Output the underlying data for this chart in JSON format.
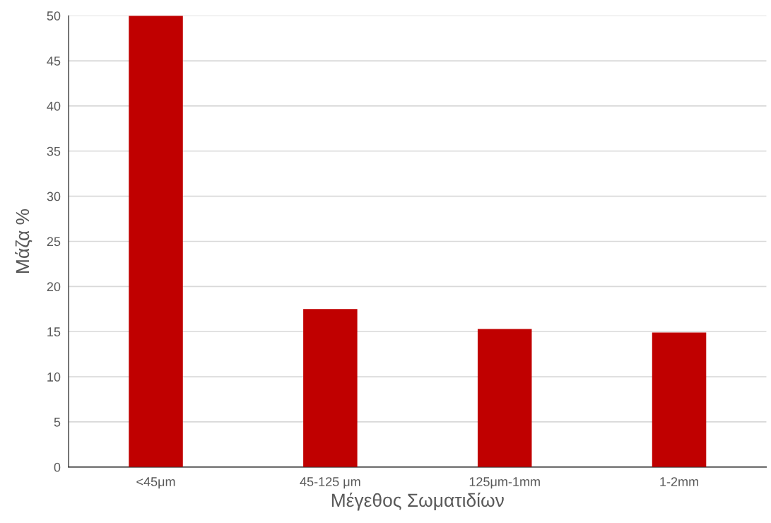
{
  "chart_data": {
    "type": "bar",
    "xlabel": "Μέγεθος Σωματιδίων",
    "ylabel": "Μάζα %",
    "categories": [
      "<45μm",
      "45-125 μm",
      "125μm-1mm",
      "1-2mm"
    ],
    "values": [
      50,
      17.5,
      15.3,
      14.9
    ],
    "color": "#c00000",
    "ylim": [
      0,
      50
    ],
    "yticks": [
      0,
      5,
      10,
      15,
      20,
      25,
      30,
      35,
      40,
      45,
      50
    ],
    "grid": "y"
  }
}
